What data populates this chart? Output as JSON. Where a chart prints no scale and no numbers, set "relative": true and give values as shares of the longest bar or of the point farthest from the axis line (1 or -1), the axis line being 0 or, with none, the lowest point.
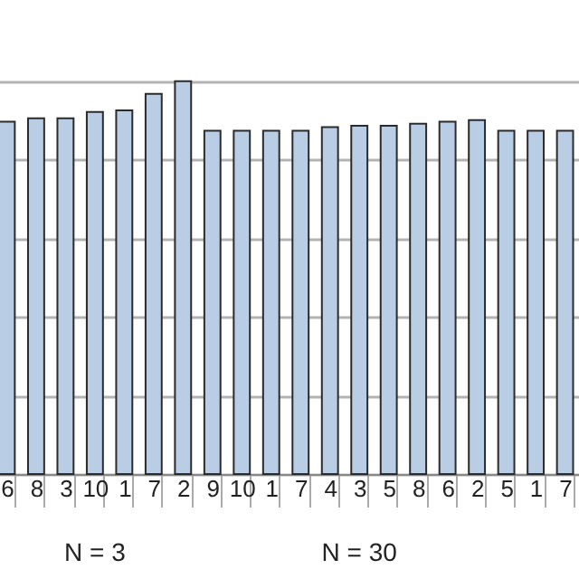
{
  "chart_data": {
    "type": "bar",
    "relative": true,
    "grid": "y",
    "color": "#b9cde5",
    "categories": [
      "6",
      "8",
      "3",
      "10",
      "1",
      "7",
      "2",
      "9",
      "10",
      "1",
      "7",
      "4",
      "3",
      "5",
      "8",
      "6",
      "2",
      "5",
      "1",
      "7"
    ],
    "values": [
      0.897,
      0.906,
      0.906,
      0.922,
      0.926,
      0.968,
      1,
      0.874,
      0.874,
      0.874,
      0.874,
      0.883,
      0.887,
      0.887,
      0.892,
      0.897,
      0.901,
      0.874,
      0.874,
      0.874
    ],
    "annotations": [
      "N = 3",
      "N = 30"
    ]
  }
}
